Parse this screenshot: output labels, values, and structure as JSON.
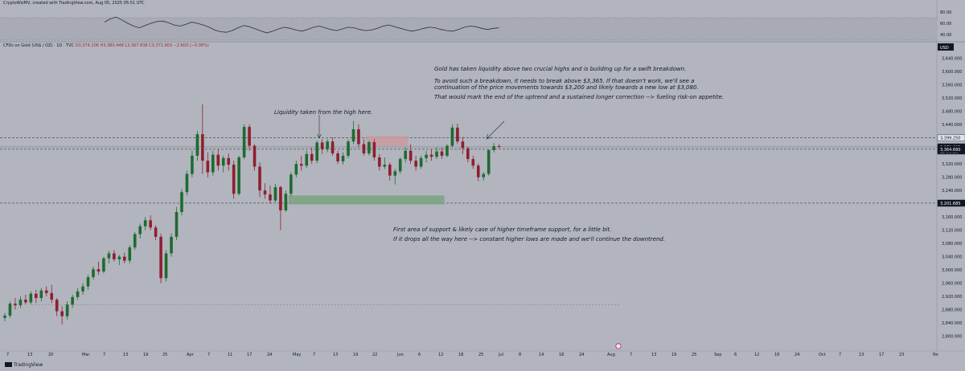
{
  "header": {
    "author_line": "CryptoWizMV, created with TradingView.com, Aug 05, 2025 05:51 UTC",
    "symbol_line": "CFDs on Gold (US$ / OZ) · 1D · TVC",
    "ohlc_line": "O3,374.206 H3,380.448 L3,367.838 C3,371.603 −2.603 (−0.08%)"
  },
  "annotations": {
    "top_1": "Gold has taken liquidity above two crucial highs and is building up for a swift breakdown.",
    "top_2": "To avoid such a breakdown, it needs to break above $3,365. If that doesn't work, we'll see a",
    "top_3": "continuation of the price movements towards $3,200 and likely towards a new low at $3,080.",
    "top_4": "That would mark the end of the uptrend and a sustained longer correction --> fueling risk-on appetite.",
    "liquidity": "Liquidity taken from the high here.",
    "bottom_1": "First area of support & likely case of higher timeframe support, for a little bit.",
    "bottom_2": "If it drops all the way here --> constant higher lows are made and we'll continue the downtrend."
  },
  "branding": {
    "label": "TradingView"
  },
  "colors": {
    "background": "#b2b5be",
    "up": "#1e6b2f",
    "down": "#8e1f2f",
    "support_zone": "#7aa382",
    "resistance_zone": "#c99aa0",
    "rsi_band": "#a8abb5"
  },
  "chart_data": {
    "type": "candlestick",
    "price_axis": {
      "range": [
        2760,
        3670
      ],
      "ticks": [
        "3,640.000",
        "3,600.000",
        "3,560.000",
        "3,520.000",
        "3,480.000",
        "3,440.000",
        "3,320.000",
        "3,280.000",
        "3,240.000",
        "3,160.000",
        "3,120.000",
        "3,080.000",
        "3,040.000",
        "3,000.000",
        "2,960.000",
        "2,920.000",
        "2,880.000",
        "2,840.000",
        "2,800.000"
      ],
      "tick_values": [
        3640,
        3600,
        3560,
        3520,
        3480,
        3440,
        3320,
        3280,
        3240,
        3160,
        3120,
        3080,
        3040,
        3000,
        2960,
        2920,
        2880,
        2840,
        2800
      ],
      "currency": "USD"
    },
    "price_labels": [
      {
        "value": 3399.25,
        "text": "3,399.250",
        "style": "light"
      },
      {
        "value": 3371.603,
        "text": "3,371.603",
        "style": "dark",
        "sub": "15:08:16"
      },
      {
        "value": 3364.66,
        "text": "3,364.660",
        "style": "dark"
      },
      {
        "value": 3201.685,
        "text": "3,201.685",
        "style": "dark"
      }
    ],
    "horizontal_levels": [
      {
        "value": 3399.25,
        "style": "dashed"
      },
      {
        "value": 3364.66,
        "style": "dashed"
      },
      {
        "value": 3201.685,
        "style": "dashed"
      },
      {
        "value": 3371.603,
        "style": "solid-thin"
      }
    ],
    "time_axis": {
      "labels": [
        "7",
        "13",
        "20",
        "Mar",
        "7",
        "13",
        "19",
        "25",
        "Apr",
        "7",
        "11",
        "17",
        "24",
        "May",
        "7",
        "13",
        "19",
        "22",
        "Jun",
        "6",
        "12",
        "18",
        "25",
        "Jul",
        "8",
        "14",
        "18",
        "24",
        "Aug",
        "7",
        "13",
        "19",
        "25",
        "Sep",
        "6",
        "12",
        "18",
        "24",
        "Oct",
        "7",
        "13",
        "17",
        "23",
        "No"
      ],
      "label_x": [
        8,
        34,
        60,
        102,
        128,
        153,
        178,
        202,
        232,
        258,
        283,
        307,
        332,
        364,
        389,
        414,
        439,
        463,
        494,
        520,
        545,
        570,
        595,
        620,
        645,
        670,
        695,
        720,
        755,
        783,
        810,
        835,
        860,
        888,
        913,
        938,
        963,
        988,
        1018,
        1043,
        1068,
        1093,
        1118,
        1160
      ]
    },
    "candles": [
      {
        "o": 2855,
        "h": 2870,
        "l": 2845,
        "c": 2862
      },
      {
        "o": 2862,
        "h": 2905,
        "l": 2855,
        "c": 2898
      },
      {
        "o": 2898,
        "h": 2915,
        "l": 2880,
        "c": 2893
      },
      {
        "o": 2893,
        "h": 2920,
        "l": 2885,
        "c": 2910
      },
      {
        "o": 2910,
        "h": 2925,
        "l": 2895,
        "c": 2902
      },
      {
        "o": 2902,
        "h": 2935,
        "l": 2895,
        "c": 2928
      },
      {
        "o": 2928,
        "h": 2940,
        "l": 2900,
        "c": 2915
      },
      {
        "o": 2915,
        "h": 2945,
        "l": 2905,
        "c": 2938
      },
      {
        "o": 2938,
        "h": 2950,
        "l": 2920,
        "c": 2930
      },
      {
        "o": 2930,
        "h": 2955,
        "l": 2900,
        "c": 2910
      },
      {
        "o": 2910,
        "h": 2915,
        "l": 2860,
        "c": 2875
      },
      {
        "o": 2875,
        "h": 2890,
        "l": 2835,
        "c": 2860
      },
      {
        "o": 2860,
        "h": 2905,
        "l": 2850,
        "c": 2895
      },
      {
        "o": 2895,
        "h": 2925,
        "l": 2885,
        "c": 2918
      },
      {
        "o": 2918,
        "h": 2945,
        "l": 2910,
        "c": 2935
      },
      {
        "o": 2935,
        "h": 2960,
        "l": 2925,
        "c": 2950
      },
      {
        "o": 2950,
        "h": 2985,
        "l": 2940,
        "c": 2978
      },
      {
        "o": 2978,
        "h": 3010,
        "l": 2970,
        "c": 3002
      },
      {
        "o": 3002,
        "h": 3025,
        "l": 2985,
        "c": 2995
      },
      {
        "o": 2995,
        "h": 3040,
        "l": 2990,
        "c": 3035
      },
      {
        "o": 3035,
        "h": 3058,
        "l": 3020,
        "c": 3050
      },
      {
        "o": 3050,
        "h": 3060,
        "l": 3025,
        "c": 3032
      },
      {
        "o": 3032,
        "h": 3045,
        "l": 3015,
        "c": 3040
      },
      {
        "o": 3040,
        "h": 3052,
        "l": 3020,
        "c": 3028
      },
      {
        "o": 3028,
        "h": 3075,
        "l": 3020,
        "c": 3068
      },
      {
        "o": 3068,
        "h": 3115,
        "l": 3060,
        "c": 3108
      },
      {
        "o": 3108,
        "h": 3140,
        "l": 3095,
        "c": 3132
      },
      {
        "o": 3132,
        "h": 3160,
        "l": 3120,
        "c": 3150
      },
      {
        "o": 3150,
        "h": 3165,
        "l": 3120,
        "c": 3128
      },
      {
        "o": 3128,
        "h": 3135,
        "l": 3090,
        "c": 3100
      },
      {
        "o": 3100,
        "h": 3110,
        "l": 2960,
        "c": 2975
      },
      {
        "o": 2975,
        "h": 3060,
        "l": 2965,
        "c": 3050
      },
      {
        "o": 3050,
        "h": 3110,
        "l": 3040,
        "c": 3100
      },
      {
        "o": 3100,
        "h": 3190,
        "l": 3090,
        "c": 3175
      },
      {
        "o": 3175,
        "h": 3245,
        "l": 3165,
        "c": 3235
      },
      {
        "o": 3235,
        "h": 3300,
        "l": 3225,
        "c": 3290
      },
      {
        "o": 3290,
        "h": 3360,
        "l": 3280,
        "c": 3345
      },
      {
        "o": 3345,
        "h": 3420,
        "l": 3330,
        "c": 3410
      },
      {
        "o": 3410,
        "h": 3500,
        "l": 3290,
        "c": 3330
      },
      {
        "o": 3330,
        "h": 3355,
        "l": 3280,
        "c": 3295
      },
      {
        "o": 3295,
        "h": 3360,
        "l": 3285,
        "c": 3348
      },
      {
        "o": 3348,
        "h": 3365,
        "l": 3300,
        "c": 3315
      },
      {
        "o": 3315,
        "h": 3345,
        "l": 3295,
        "c": 3338
      },
      {
        "o": 3338,
        "h": 3352,
        "l": 3300,
        "c": 3318
      },
      {
        "o": 3318,
        "h": 3330,
        "l": 3215,
        "c": 3230
      },
      {
        "o": 3230,
        "h": 3345,
        "l": 3225,
        "c": 3340
      },
      {
        "o": 3340,
        "h": 3440,
        "l": 3335,
        "c": 3432
      },
      {
        "o": 3432,
        "h": 3440,
        "l": 3360,
        "c": 3375
      },
      {
        "o": 3375,
        "h": 3380,
        "l": 3300,
        "c": 3312
      },
      {
        "o": 3312,
        "h": 3325,
        "l": 3220,
        "c": 3240
      },
      {
        "o": 3240,
        "h": 3262,
        "l": 3215,
        "c": 3228
      },
      {
        "o": 3228,
        "h": 3255,
        "l": 3200,
        "c": 3210
      },
      {
        "o": 3210,
        "h": 3260,
        "l": 3205,
        "c": 3250
      },
      {
        "o": 3250,
        "h": 3255,
        "l": 3120,
        "c": 3180
      },
      {
        "o": 3180,
        "h": 3240,
        "l": 3175,
        "c": 3230
      },
      {
        "o": 3230,
        "h": 3295,
        "l": 3222,
        "c": 3288
      },
      {
        "o": 3288,
        "h": 3330,
        "l": 3280,
        "c": 3320
      },
      {
        "o": 3320,
        "h": 3345,
        "l": 3300,
        "c": 3315
      },
      {
        "o": 3315,
        "h": 3360,
        "l": 3308,
        "c": 3350
      },
      {
        "o": 3350,
        "h": 3370,
        "l": 3320,
        "c": 3330
      },
      {
        "o": 3330,
        "h": 3390,
        "l": 3322,
        "c": 3385
      },
      {
        "o": 3385,
        "h": 3395,
        "l": 3350,
        "c": 3365
      },
      {
        "o": 3365,
        "h": 3395,
        "l": 3355,
        "c": 3388
      },
      {
        "o": 3388,
        "h": 3400,
        "l": 3345,
        "c": 3352
      },
      {
        "o": 3352,
        "h": 3360,
        "l": 3320,
        "c": 3328
      },
      {
        "o": 3328,
        "h": 3355,
        "l": 3318,
        "c": 3345
      },
      {
        "o": 3345,
        "h": 3395,
        "l": 3338,
        "c": 3388
      },
      {
        "o": 3388,
        "h": 3450,
        "l": 3380,
        "c": 3425
      },
      {
        "o": 3425,
        "h": 3440,
        "l": 3370,
        "c": 3380
      },
      {
        "o": 3380,
        "h": 3395,
        "l": 3345,
        "c": 3352
      },
      {
        "o": 3352,
        "h": 3390,
        "l": 3345,
        "c": 3386
      },
      {
        "o": 3386,
        "h": 3395,
        "l": 3330,
        "c": 3340
      },
      {
        "o": 3340,
        "h": 3350,
        "l": 3300,
        "c": 3312
      },
      {
        "o": 3312,
        "h": 3340,
        "l": 3305,
        "c": 3318
      },
      {
        "o": 3318,
        "h": 3325,
        "l": 3270,
        "c": 3285
      },
      {
        "o": 3285,
        "h": 3305,
        "l": 3258,
        "c": 3298
      },
      {
        "o": 3298,
        "h": 3340,
        "l": 3290,
        "c": 3335
      },
      {
        "o": 3335,
        "h": 3370,
        "l": 3325,
        "c": 3360
      },
      {
        "o": 3360,
        "h": 3380,
        "l": 3320,
        "c": 3330
      },
      {
        "o": 3330,
        "h": 3345,
        "l": 3300,
        "c": 3312
      },
      {
        "o": 3312,
        "h": 3345,
        "l": 3305,
        "c": 3338
      },
      {
        "o": 3338,
        "h": 3360,
        "l": 3325,
        "c": 3348
      },
      {
        "o": 3348,
        "h": 3365,
        "l": 3330,
        "c": 3342
      },
      {
        "o": 3342,
        "h": 3370,
        "l": 3335,
        "c": 3358
      },
      {
        "o": 3358,
        "h": 3370,
        "l": 3335,
        "c": 3345
      },
      {
        "o": 3345,
        "h": 3380,
        "l": 3340,
        "c": 3375
      },
      {
        "o": 3375,
        "h": 3440,
        "l": 3370,
        "c": 3430
      },
      {
        "o": 3430,
        "h": 3442,
        "l": 3380,
        "c": 3388
      },
      {
        "o": 3388,
        "h": 3402,
        "l": 3350,
        "c": 3368
      },
      {
        "o": 3368,
        "h": 3372,
        "l": 3325,
        "c": 3335
      },
      {
        "o": 3335,
        "h": 3345,
        "l": 3305,
        "c": 3315
      },
      {
        "o": 3315,
        "h": 3322,
        "l": 3268,
        "c": 3280
      },
      {
        "o": 3280,
        "h": 3295,
        "l": 3270,
        "c": 3290
      },
      {
        "o": 3290,
        "h": 3365,
        "l": 3285,
        "c": 3362
      },
      {
        "o": 3362,
        "h": 3383,
        "l": 3355,
        "c": 3374
      },
      {
        "o": 3374,
        "h": 3380,
        "l": 3367,
        "c": 3371.6
      }
    ],
    "zones": [
      {
        "name": "support",
        "from_index": 55,
        "to_index": 84,
        "top": 3225,
        "bottom": 3198
      },
      {
        "name": "resistance",
        "from_index": 70,
        "to_index": 77,
        "top": 3405,
        "bottom": 3375
      }
    ],
    "rsi": {
      "range": [
        30,
        90
      ],
      "ticks": [
        "80.00",
        "60.00",
        "40.00"
      ],
      "tick_values": [
        80,
        60,
        40
      ],
      "band": [
        30,
        70
      ],
      "values": [
        62,
        68,
        71,
        66,
        60,
        55,
        52,
        56,
        60,
        63,
        64,
        61,
        57,
        55,
        58,
        62,
        60,
        57,
        53,
        48,
        45,
        44,
        47,
        52,
        56,
        54,
        50,
        46,
        43,
        46,
        50,
        53,
        51,
        48,
        46,
        49,
        53,
        55,
        52,
        49,
        47,
        50,
        53,
        52,
        49,
        47,
        48,
        51,
        55,
        57,
        54,
        51,
        48,
        46,
        48,
        51,
        53,
        52,
        49,
        47,
        46,
        49,
        53,
        55,
        54,
        51,
        49,
        51,
        52
      ]
    }
  }
}
